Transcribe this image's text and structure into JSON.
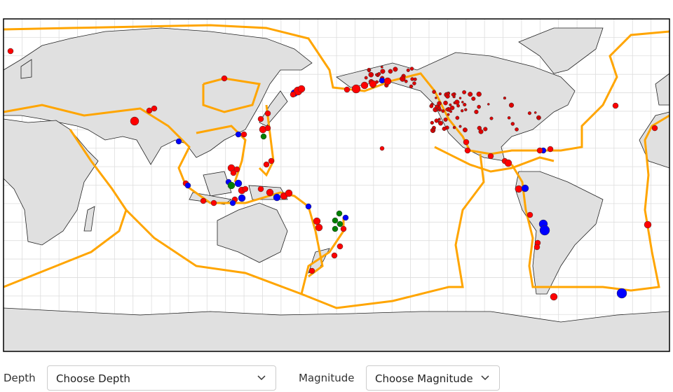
{
  "controls": {
    "depth": {
      "label": "Depth",
      "placeholder": "Choose Depth"
    },
    "magnitude": {
      "label": "Magnitude",
      "placeholder": "Choose Magnitude"
    }
  }
}
